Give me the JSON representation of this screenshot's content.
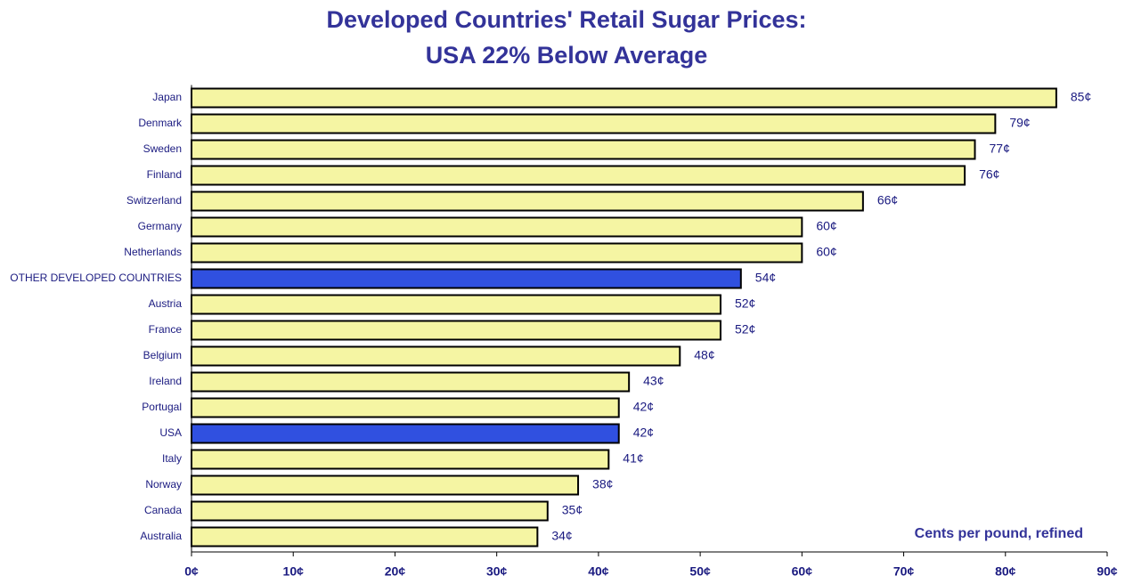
{
  "chart_data": {
    "type": "hbar",
    "title": [
      "Developed Countries' Retail Sugar Prices:",
      "USA 22% Below Average"
    ],
    "annotation": "Cents per pound, refined",
    "categories": [
      "Japan",
      "Denmark",
      "Sweden",
      "Finland",
      "Switzerland",
      "Germany",
      "Netherlands",
      "OTHER DEVELOPED COUNTRIES",
      "Austria",
      "France",
      "Belgium",
      "Ireland",
      "Portugal",
      "USA",
      "Italy",
      "Norway",
      "Canada",
      "Australia"
    ],
    "values": [
      85,
      79,
      77,
      76,
      66,
      60,
      60,
      54,
      52,
      52,
      48,
      43,
      42,
      42,
      41,
      38,
      35,
      34
    ],
    "value_labels": [
      "85¢",
      "79¢",
      "77¢",
      "76¢",
      "66¢",
      "60¢",
      "60¢",
      "54¢",
      "52¢",
      "52¢",
      "48¢",
      "43¢",
      "42¢",
      "42¢",
      "41¢",
      "38¢",
      "35¢",
      "34¢"
    ],
    "colors": [
      "#f5f5a3",
      "#f5f5a3",
      "#f5f5a3",
      "#f5f5a3",
      "#f5f5a3",
      "#f5f5a3",
      "#f5f5a3",
      "#3050e0",
      "#f5f5a3",
      "#f5f5a3",
      "#f5f5a3",
      "#f5f5a3",
      "#f5f5a3",
      "#3050e0",
      "#f5f5a3",
      "#f5f5a3",
      "#f5f5a3",
      "#f5f5a3"
    ],
    "xlim": [
      0,
      90
    ],
    "xticks": [
      {
        "value": 0,
        "label": "0¢"
      },
      {
        "value": 10,
        "label": "10¢"
      },
      {
        "value": 20,
        "label": "20¢"
      },
      {
        "value": 30,
        "label": "30¢"
      },
      {
        "value": 40,
        "label": "40¢"
      },
      {
        "value": 50,
        "label": "50¢"
      },
      {
        "value": 60,
        "label": "60¢"
      },
      {
        "value": 70,
        "label": "70¢"
      },
      {
        "value": 80,
        "label": "80¢"
      },
      {
        "value": 90,
        "label": "90¢"
      }
    ]
  }
}
